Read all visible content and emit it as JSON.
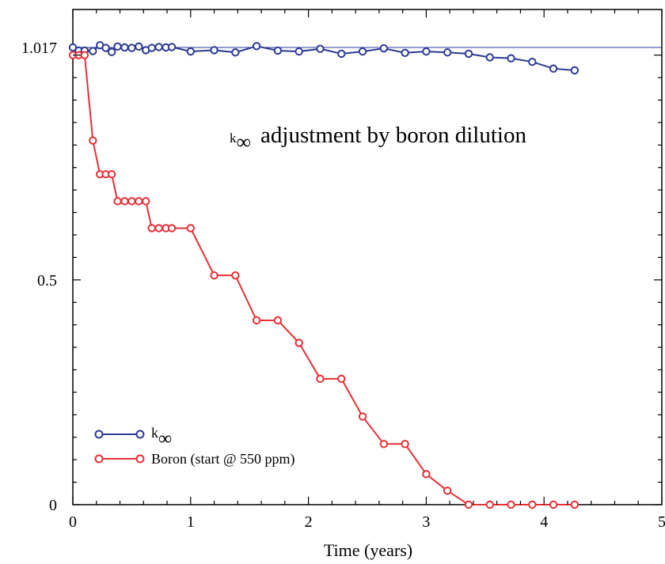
{
  "chart_data": {
    "type": "line",
    "title": "k∞ adjustment by boron dilution",
    "title_prefix": "k",
    "title_symbol": "∞",
    "title_rest": "adjustment by boron dilution",
    "xlabel": "Time (years)",
    "ylabel": "",
    "xlim": [
      0,
      5
    ],
    "ylim": [
      0,
      1.017
    ],
    "x_ticks": [
      0,
      1,
      2,
      3,
      4,
      5
    ],
    "y_ticks": [
      0,
      0.5,
      1.017
    ],
    "x_tick_labels": [
      "0",
      "1",
      "2",
      "3",
      "4",
      "5"
    ],
    "y_tick_labels": [
      "0",
      "0.5",
      "1.017"
    ],
    "reference_line": 1.017,
    "grid": false,
    "legend_position": "bottom-left",
    "series": [
      {
        "name": "k∞",
        "legend_prefix": "k",
        "legend_symbol": "∞",
        "color": "#2b3a93",
        "x": [
          0,
          0.05,
          0.1,
          0.17,
          0.23,
          0.28,
          0.33,
          0.38,
          0.44,
          0.5,
          0.56,
          0.62,
          0.67,
          0.73,
          0.79,
          0.84,
          1.0,
          1.2,
          1.38,
          1.56,
          1.74,
          1.92,
          2.1,
          2.28,
          2.46,
          2.64,
          2.82,
          3.0,
          3.18,
          3.36,
          3.54,
          3.72,
          3.9,
          4.08,
          4.26
        ],
        "y": [
          1.017,
          1.01,
          1.01,
          1.009,
          1.022,
          1.016,
          1.007,
          1.019,
          1.017,
          1.016,
          1.019,
          1.011,
          1.016,
          1.018,
          1.017,
          1.018,
          1.008,
          1.011,
          1.006,
          1.02,
          1.01,
          1.008,
          1.014,
          1.003,
          1.008,
          1.015,
          1.005,
          1.008,
          1.006,
          1.003,
          0.995,
          0.993,
          0.985,
          0.97,
          0.966
        ]
      },
      {
        "name": "Boron (start @ 550 ppm)",
        "color": "#e53037",
        "x": [
          0,
          0.05,
          0.1,
          0.17,
          0.23,
          0.28,
          0.33,
          0.38,
          0.44,
          0.5,
          0.56,
          0.62,
          0.67,
          0.73,
          0.79,
          0.84,
          1.0,
          1.2,
          1.38,
          1.56,
          1.74,
          1.92,
          2.1,
          2.28,
          2.46,
          2.64,
          2.82,
          3.0,
          3.18,
          3.36,
          3.54,
          3.72,
          3.9,
          4.08,
          4.26
        ],
        "y": [
          1.0,
          1.0,
          1.0,
          0.81,
          0.735,
          0.735,
          0.735,
          0.675,
          0.675,
          0.675,
          0.675,
          0.675,
          0.615,
          0.615,
          0.615,
          0.615,
          0.615,
          0.51,
          0.51,
          0.41,
          0.41,
          0.36,
          0.28,
          0.28,
          0.196,
          0.135,
          0.135,
          0.068,
          0.031,
          0.0,
          0.0,
          0.0,
          0.0,
          0.0,
          0.0
        ]
      }
    ]
  }
}
